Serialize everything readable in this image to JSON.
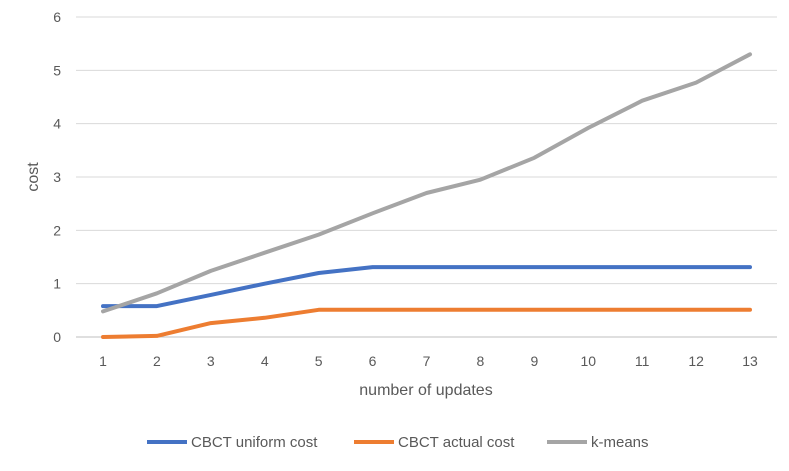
{
  "chart_data": {
    "type": "line",
    "title": "",
    "xlabel": "number of updates",
    "ylabel": "cost",
    "categories": [
      "1",
      "2",
      "3",
      "4",
      "5",
      "6",
      "7",
      "8",
      "9",
      "10",
      "11",
      "12",
      "13"
    ],
    "ylim": [
      0,
      6
    ],
    "yticks": [
      "0",
      "1",
      "2",
      "3",
      "4",
      "5",
      "6"
    ],
    "grid": true,
    "legend_position": "bottom",
    "series": [
      {
        "name": "CBCT uniform cost",
        "color": "#4472C4",
        "values": [
          0.58,
          0.58,
          0.79,
          1.0,
          1.2,
          1.31,
          1.31,
          1.31,
          1.31,
          1.31,
          1.31,
          1.31,
          1.31
        ]
      },
      {
        "name": "CBCT actual cost",
        "color": "#ED7D31",
        "values": [
          0.0,
          0.02,
          0.26,
          0.36,
          0.51,
          0.51,
          0.51,
          0.51,
          0.51,
          0.51,
          0.51,
          0.51,
          0.51
        ]
      },
      {
        "name": "k-means",
        "color": "#A5A5A5",
        "values": [
          0.48,
          0.82,
          1.24,
          1.58,
          1.92,
          2.32,
          2.7,
          2.95,
          3.36,
          3.92,
          4.43,
          4.77,
          5.3
        ]
      }
    ]
  }
}
